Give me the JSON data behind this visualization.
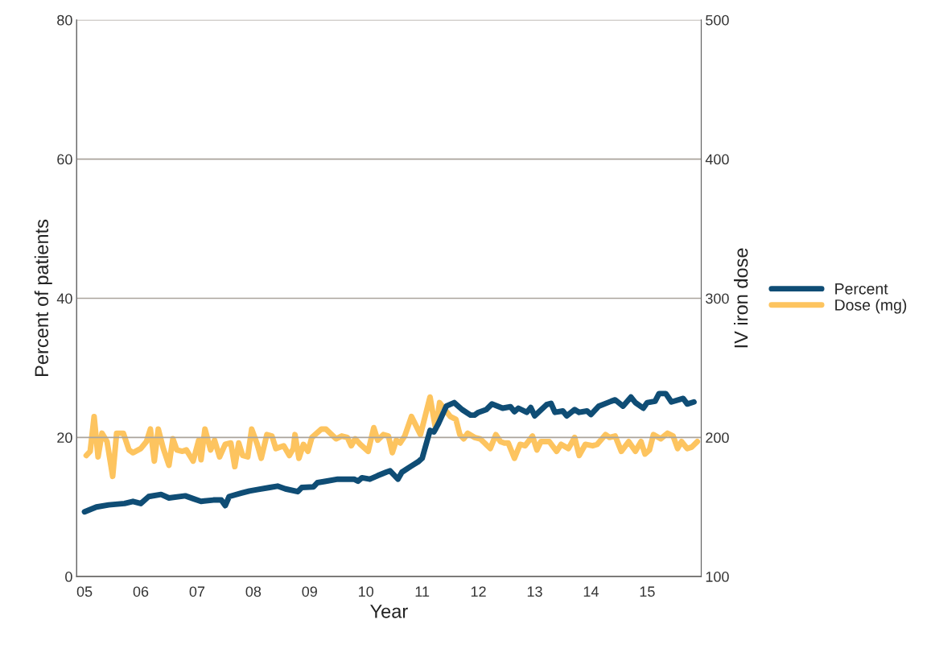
{
  "chart_data": {
    "type": "line",
    "xlabel": "Year",
    "ylabel": "Percent of patients",
    "y2label": "IV iron dose",
    "xlim": [
      2004.86,
      2015.96
    ],
    "xticks": [
      {
        "value": 2005,
        "label": "05"
      },
      {
        "value": 2006,
        "label": "06"
      },
      {
        "value": 2007,
        "label": "07"
      },
      {
        "value": 2008,
        "label": "08"
      },
      {
        "value": 2009,
        "label": "09"
      },
      {
        "value": 2010,
        "label": "10"
      },
      {
        "value": 2011,
        "label": "11"
      },
      {
        "value": 2012,
        "label": "12"
      },
      {
        "value": 2013,
        "label": "13"
      },
      {
        "value": 2014,
        "label": "14"
      },
      {
        "value": 2015,
        "label": "15"
      }
    ],
    "ylim": [
      0,
      80
    ],
    "yticks": [
      0,
      20,
      40,
      60,
      80
    ],
    "y2lim": [
      100,
      500
    ],
    "y2ticks": [
      100,
      200,
      300,
      400,
      500
    ],
    "grid": "y",
    "legend": "right",
    "marker": "none",
    "line_style": "solid",
    "series": [
      {
        "name": "Percent",
        "color": "#0f4d75",
        "x": [
          2005.0,
          2005.21,
          2005.43,
          2005.71,
          2005.86,
          2006.0,
          2006.14,
          2006.36,
          2006.5,
          2006.79,
          2006.93,
          2007.07,
          2007.29,
          2007.43,
          2007.5,
          2007.57,
          2007.79,
          2007.93,
          2008.07,
          2008.29,
          2008.43,
          2008.57,
          2008.79,
          2008.86,
          2009.07,
          2009.14,
          2009.29,
          2009.5,
          2009.79,
          2009.86,
          2009.93,
          2010.07,
          2010.21,
          2010.36,
          2010.43,
          2010.57,
          2010.64,
          2010.79,
          2010.93,
          2011.0,
          2011.14,
          2011.21,
          2011.29,
          2011.43,
          2011.57,
          2011.71,
          2011.86,
          2011.93,
          2012.0,
          2012.14,
          2012.24,
          2012.43,
          2012.57,
          2012.64,
          2012.71,
          2012.86,
          2012.93,
          2013.0,
          2013.21,
          2013.29,
          2013.36,
          2013.5,
          2013.57,
          2013.71,
          2013.79,
          2013.93,
          2014.0,
          2014.14,
          2014.36,
          2014.43,
          2014.57,
          2014.71,
          2014.79,
          2014.93,
          2015.0,
          2015.14,
          2015.21,
          2015.33,
          2015.43,
          2015.64,
          2015.71,
          2015.83
        ],
        "values": [
          9.3,
          10,
          10.3,
          10.5,
          10.8,
          10.5,
          11.5,
          11.8,
          11.3,
          11.6,
          11.2,
          10.8,
          11.0,
          11.0,
          10.2,
          11.5,
          12.0,
          12.3,
          12.5,
          12.8,
          13.0,
          12.6,
          12.2,
          12.8,
          12.9,
          13.5,
          13.7,
          14.0,
          14.0,
          13.7,
          14.2,
          14.0,
          14.5,
          15.0,
          15.2,
          14.0,
          15.0,
          15.8,
          16.5,
          17.0,
          21,
          20.8,
          22,
          24.5,
          25,
          24,
          23.2,
          23.2,
          23.6,
          24,
          24.8,
          24.2,
          24.4,
          23.7,
          24.2,
          23.6,
          24.3,
          23.1,
          24.7,
          24.9,
          23.6,
          23.8,
          23.1,
          24.0,
          23.6,
          23.8,
          23.3,
          24.5,
          25.2,
          25.4,
          24.5,
          25.8,
          25,
          24.2,
          25,
          25.2,
          26.3,
          26.3,
          25.1,
          25.6,
          24.8,
          25.1
        ]
      },
      {
        "name": "Dose (mg)",
        "color": "#fdc45f",
        "axis": "y2",
        "x": [
          2005.03,
          2005.1,
          2005.17,
          2005.24,
          2005.31,
          2005.4,
          2005.5,
          2005.57,
          2005.69,
          2005.79,
          2005.86,
          2006.0,
          2006.1,
          2006.17,
          2006.24,
          2006.31,
          2006.4,
          2006.5,
          2006.57,
          2006.64,
          2006.74,
          2006.81,
          2006.93,
          2007.03,
          2007.07,
          2007.14,
          2007.24,
          2007.31,
          2007.4,
          2007.5,
          2007.6,
          2007.67,
          2007.74,
          2007.81,
          2007.9,
          2007.97,
          2008.07,
          2008.14,
          2008.24,
          2008.33,
          2008.4,
          2008.54,
          2008.64,
          2008.71,
          2008.74,
          2008.81,
          2008.89,
          2008.97,
          2009.04,
          2009.21,
          2009.29,
          2009.47,
          2009.57,
          2009.67,
          2009.74,
          2009.81,
          2009.9,
          2010.04,
          2010.14,
          2010.21,
          2010.31,
          2010.4,
          2010.47,
          2010.54,
          2010.61,
          2010.69,
          2010.81,
          2010.97,
          2011.14,
          2011.24,
          2011.31,
          2011.5,
          2011.6,
          2011.67,
          2011.74,
          2011.81,
          2011.93,
          2012.03,
          2012.11,
          2012.21,
          2012.31,
          2012.39,
          2012.46,
          2012.53,
          2012.64,
          2012.74,
          2012.83,
          2012.96,
          2013.04,
          2013.11,
          2013.26,
          2013.39,
          2013.47,
          2013.6,
          2013.71,
          2013.79,
          2013.9,
          2014.03,
          2014.11,
          2014.26,
          2014.33,
          2014.43,
          2014.54,
          2014.67,
          2014.79,
          2014.89,
          2014.96,
          2015.04,
          2015.11,
          2015.24,
          2015.36,
          2015.46,
          2015.54,
          2015.61,
          2015.71,
          2015.79,
          2015.89
        ],
        "values": [
          187,
          190,
          215,
          186,
          203,
          197,
          172,
          203,
          203,
          191,
          189,
          192,
          197,
          206,
          183,
          206,
          192,
          180,
          199,
          191,
          190,
          191,
          183,
          198,
          184,
          206,
          191,
          198,
          186,
          195,
          196,
          179,
          196,
          187,
          186,
          206,
          195,
          185,
          202,
          201,
          192,
          194,
          187,
          192,
          202,
          185,
          195,
          190,
          200,
          206,
          206,
          199,
          201,
          200,
          194,
          199,
          195,
          190,
          207,
          198,
          202,
          201,
          189,
          198,
          196,
          201,
          215,
          202,
          229,
          206,
          225,
          215,
          213,
          202,
          199,
          203,
          200,
          199,
          196,
          192,
          202,
          197,
          196,
          196,
          185,
          195,
          194,
          201,
          191,
          197,
          197,
          190,
          195,
          192,
          200,
          187,
          195,
          194,
          195,
          202,
          200,
          201,
          190,
          197,
          190,
          197,
          188,
          191,
          202,
          199,
          203,
          201,
          192,
          197,
          192,
          193,
          197
        ]
      }
    ]
  }
}
